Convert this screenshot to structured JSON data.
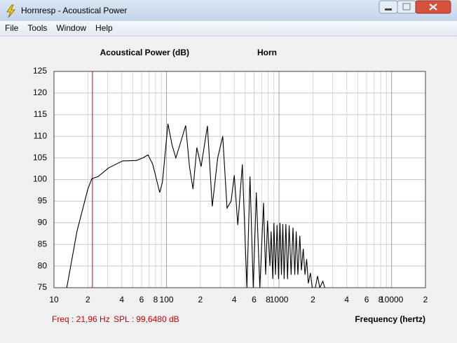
{
  "window": {
    "title": "Hornresp - Acoustical Power"
  },
  "menu": [
    "File",
    "Tools",
    "Window",
    "Help"
  ],
  "status": {
    "freq": "Freq : 21,96 Hz",
    "spl": "SPL : 99,6480 dB"
  },
  "chart_data": {
    "type": "line",
    "title": "Acoustical Power (dB)",
    "subtitle": "Horn",
    "x_label": "Frequency (hertz)",
    "x_scale": "log",
    "grid": true,
    "cursor_x": 21.96,
    "cursor_color": "#cc0000",
    "xlim": [
      10,
      20000
    ],
    "xticks": [
      {
        "value": 10,
        "label": "10"
      },
      {
        "value": 20,
        "label": "2"
      },
      {
        "value": 40,
        "label": "4"
      },
      {
        "value": 60,
        "label": "6"
      },
      {
        "value": 80,
        "label": "8"
      },
      100,
      {
        "value": 200,
        "label": "2"
      },
      {
        "value": 400,
        "label": "4"
      },
      {
        "value": 600,
        "label": "6"
      },
      {
        "value": 800,
        "label": "8"
      },
      1000,
      {
        "value": 2000,
        "label": "2"
      },
      {
        "value": 4000,
        "label": "4"
      },
      {
        "value": 6000,
        "label": "6"
      },
      {
        "value": 8000,
        "label": "8"
      },
      10000,
      {
        "value": 20000,
        "label": "2"
      }
    ],
    "xminor": [
      30,
      50,
      70,
      90,
      300,
      500,
      700,
      900,
      3000,
      5000,
      7000,
      9000
    ],
    "ylim": [
      75,
      125
    ],
    "yticks": [
      75,
      80,
      85,
      90,
      95,
      100,
      105,
      110,
      115,
      120,
      125
    ],
    "series": [
      {
        "name": "Horn",
        "color": "#000000",
        "x": [
          13,
          16,
          20,
          21.7,
          24.7,
          30.6,
          40.7,
          54,
          62.6,
          68.5,
          75.5,
          87,
          92,
          103,
          112,
          121,
          135,
          148,
          160,
          172,
          186,
          203,
          231,
          255,
          285,
          316,
          345,
          375,
          400,
          430,
          472,
          518,
          552,
          590,
          628,
          675,
          728,
          760,
          790,
          830,
          850,
          880,
          900,
          930,
          960,
          990,
          1020,
          1050,
          1080,
          1110,
          1150,
          1190,
          1230,
          1280,
          1330,
          1380,
          1420,
          1470,
          1530,
          1580,
          1640,
          1700,
          1760,
          1820,
          1900,
          1970,
          2100,
          2200,
          2300,
          2450,
          2550
        ],
        "values": [
          75,
          88,
          97.8,
          100.2,
          100.7,
          102.7,
          104.3,
          104.4,
          105.1,
          105.7,
          103.5,
          97,
          99.4,
          112.9,
          108,
          105,
          109,
          112.5,
          103,
          97.8,
          107.4,
          103,
          112.4,
          93.8,
          105,
          110,
          93.4,
          95,
          101,
          89.5,
          103.5,
          75,
          100.7,
          75,
          97,
          75,
          94.6,
          78,
          90.5,
          80,
          88,
          77,
          90,
          78,
          89.5,
          77,
          90,
          78,
          89.7,
          77,
          89.7,
          77,
          89.4,
          78,
          88.9,
          78,
          88,
          78,
          87,
          79,
          84,
          78,
          81.6,
          76,
          78.4,
          75,
          75,
          77.7,
          75,
          76.5,
          75
        ]
      }
    ]
  }
}
